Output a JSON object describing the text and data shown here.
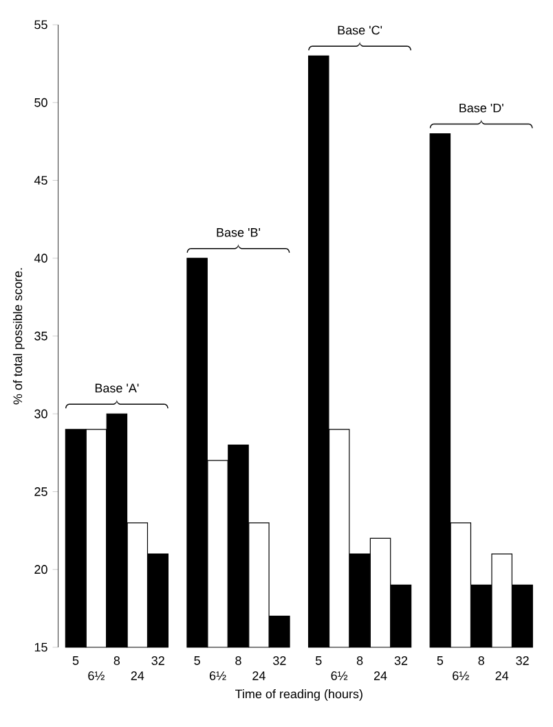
{
  "chart_data": {
    "type": "bar",
    "xlabel": "Time of reading (hours)",
    "ylabel": "% of total possible score.",
    "categories": [
      "5",
      "6½",
      "8",
      "24",
      "32",
      "5",
      "6½",
      "8",
      "24",
      "32",
      "5",
      "6½",
      "8",
      "24",
      "32",
      "5",
      "6½",
      "8",
      "24",
      "32"
    ],
    "values": [
      29,
      29,
      30,
      23,
      21,
      40,
      27,
      28,
      23,
      17,
      53,
      29,
      21,
      22,
      19,
      48,
      23,
      19,
      21,
      19
    ],
    "colors": [
      "#000000",
      "#ffffff",
      "#000000",
      "#ffffff",
      "#000000",
      "#000000",
      "#ffffff",
      "#000000",
      "#ffffff",
      "#000000",
      "#000000",
      "#ffffff",
      "#000000",
      "#ffffff",
      "#000000",
      "#000000",
      "#ffffff",
      "#000000",
      "#ffffff",
      "#000000"
    ],
    "annotations": [
      "Base 'A'",
      "Base 'B'",
      "Base 'C'",
      "Base 'D'"
    ],
    "ylim": [
      15,
      55
    ],
    "yticks": [
      15,
      20,
      25,
      30,
      35,
      40,
      45,
      50,
      55
    ],
    "grid": false
  }
}
